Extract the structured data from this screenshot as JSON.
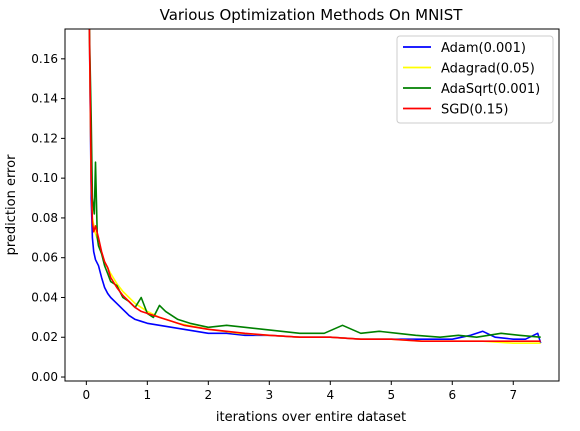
{
  "chart_data": {
    "type": "line",
    "title": "Various Optimization Methods On MNIST",
    "xlabel": "iterations over entire dataset",
    "ylabel": "prediction error",
    "xlim": [
      -0.35,
      7.75
    ],
    "ylim": [
      -0.002,
      0.175
    ],
    "xticks": [
      0,
      1,
      2,
      3,
      4,
      5,
      6,
      7
    ],
    "yticks": [
      0.0,
      0.02,
      0.04,
      0.06,
      0.08,
      0.1,
      0.12,
      0.14,
      0.16
    ],
    "ytick_labels": [
      "0.00",
      "0.02",
      "0.04",
      "0.06",
      "0.08",
      "0.10",
      "0.12",
      "0.14",
      "0.16"
    ],
    "legend_position": "top-right",
    "grid": false,
    "series": [
      {
        "name": "Adam(0.001)",
        "color": "#0000ff",
        "x": [
          0.05,
          0.08,
          0.1,
          0.12,
          0.15,
          0.2,
          0.25,
          0.3,
          0.35,
          0.4,
          0.5,
          0.6,
          0.7,
          0.8,
          0.9,
          1.0,
          1.2,
          1.4,
          1.6,
          1.8,
          2.0,
          2.3,
          2.6,
          3.0,
          3.5,
          4.0,
          4.5,
          5.0,
          5.5,
          6.0,
          6.3,
          6.5,
          6.7,
          7.0,
          7.2,
          7.4,
          7.45
        ],
        "y": [
          0.175,
          0.09,
          0.07,
          0.063,
          0.059,
          0.056,
          0.05,
          0.045,
          0.042,
          0.04,
          0.037,
          0.034,
          0.031,
          0.029,
          0.028,
          0.027,
          0.026,
          0.025,
          0.024,
          0.023,
          0.022,
          0.022,
          0.021,
          0.021,
          0.02,
          0.02,
          0.019,
          0.019,
          0.019,
          0.019,
          0.021,
          0.023,
          0.02,
          0.019,
          0.019,
          0.022,
          0.017
        ]
      },
      {
        "name": "Adagrad(0.05)",
        "color": "#ffff00",
        "x": [
          0.05,
          0.08,
          0.1,
          0.15,
          0.2,
          0.25,
          0.3,
          0.4,
          0.5,
          0.6,
          0.7,
          0.8,
          1.0,
          1.2,
          1.5,
          2.0,
          2.5,
          3.0,
          3.5,
          4.0,
          4.5,
          5.0,
          5.5,
          6.0,
          6.5,
          7.0,
          7.45
        ],
        "y": [
          0.175,
          0.1,
          0.08,
          0.072,
          0.068,
          0.062,
          0.058,
          0.052,
          0.047,
          0.043,
          0.04,
          0.037,
          0.033,
          0.03,
          0.027,
          0.024,
          0.022,
          0.021,
          0.02,
          0.02,
          0.019,
          0.019,
          0.018,
          0.018,
          0.018,
          0.017,
          0.017
        ]
      },
      {
        "name": "AdaSqrt(0.001)",
        "color": "#008000",
        "x": [
          0.05,
          0.08,
          0.1,
          0.13,
          0.15,
          0.18,
          0.2,
          0.25,
          0.3,
          0.35,
          0.4,
          0.5,
          0.6,
          0.7,
          0.8,
          0.9,
          1.0,
          1.1,
          1.2,
          1.3,
          1.5,
          1.7,
          2.0,
          2.3,
          2.6,
          2.9,
          3.2,
          3.5,
          3.9,
          4.2,
          4.5,
          4.8,
          5.1,
          5.4,
          5.8,
          6.1,
          6.4,
          6.8,
          7.1,
          7.45
        ],
        "y": [
          0.175,
          0.13,
          0.09,
          0.082,
          0.108,
          0.07,
          0.066,
          0.062,
          0.056,
          0.052,
          0.048,
          0.046,
          0.04,
          0.038,
          0.035,
          0.04,
          0.032,
          0.03,
          0.036,
          0.033,
          0.029,
          0.027,
          0.025,
          0.026,
          0.025,
          0.024,
          0.023,
          0.022,
          0.022,
          0.026,
          0.022,
          0.023,
          0.022,
          0.021,
          0.02,
          0.021,
          0.02,
          0.022,
          0.021,
          0.02
        ]
      },
      {
        "name": "SGD(0.15)",
        "color": "#ff0000",
        "x": [
          0.05,
          0.08,
          0.1,
          0.12,
          0.15,
          0.2,
          0.25,
          0.3,
          0.35,
          0.4,
          0.5,
          0.6,
          0.7,
          0.8,
          0.9,
          1.0,
          1.2,
          1.4,
          1.6,
          1.8,
          2.0,
          2.3,
          2.6,
          3.0,
          3.5,
          4.0,
          4.5,
          5.0,
          5.5,
          6.0,
          6.5,
          7.0,
          7.45
        ],
        "y": [
          0.175,
          0.1,
          0.078,
          0.073,
          0.076,
          0.07,
          0.063,
          0.058,
          0.055,
          0.05,
          0.045,
          0.041,
          0.038,
          0.035,
          0.033,
          0.032,
          0.03,
          0.028,
          0.026,
          0.025,
          0.024,
          0.023,
          0.022,
          0.021,
          0.02,
          0.02,
          0.019,
          0.019,
          0.018,
          0.018,
          0.018,
          0.018,
          0.018
        ]
      }
    ]
  }
}
